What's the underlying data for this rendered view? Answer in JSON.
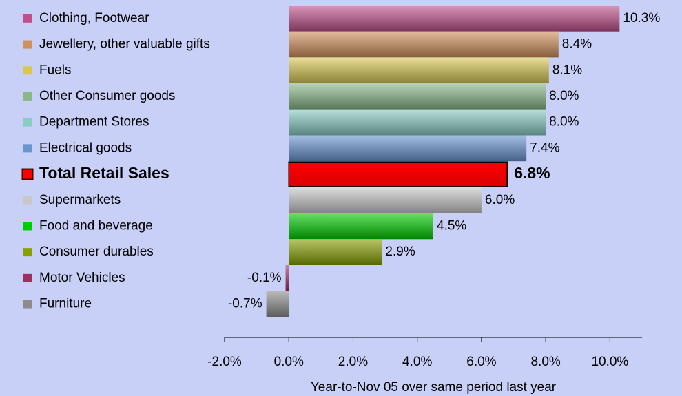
{
  "chart_data": {
    "type": "bar",
    "orientation": "horizontal",
    "x_label": "Year-to-Nov 05 over same period last year",
    "categories": [
      "Clothing, Footwear",
      "Jewellery, other valuable gifts",
      "Fuels",
      "Other Consumer goods",
      "Department Stores",
      "Electrical goods",
      "Total Retail Sales",
      "Supermarkets",
      "Food and beverage",
      "Consumer durables",
      "Motor Vehicles",
      "Furniture"
    ],
    "values": [
      10.3,
      8.4,
      8.1,
      8.0,
      8.0,
      7.4,
      6.8,
      6.0,
      4.5,
      2.9,
      -0.1,
      -0.7
    ],
    "value_labels": [
      "10.3%",
      "8.4%",
      "8.1%",
      "8.0%",
      "8.0%",
      "7.4%",
      "6.8%",
      "6.0%",
      "4.5%",
      "2.9%",
      "-0.1%",
      "-0.7%"
    ],
    "colors": [
      "#c0508a",
      "#d0905a",
      "#d8c850",
      "#88b888",
      "#88ccc4",
      "#6894d0",
      "#ff0000",
      "#c8c8c8",
      "#00cc00",
      "#88a000",
      "#a03060",
      "#8c8c8c"
    ],
    "highlight": 6,
    "xlim": [
      -2,
      11
    ],
    "xticks": [
      {
        "value": -2,
        "label": "-2.0%"
      },
      {
        "value": 0,
        "label": "0.0%"
      },
      {
        "value": 2,
        "label": "2.0%"
      },
      {
        "value": 4,
        "label": "4.0%"
      },
      {
        "value": 6,
        "label": "6.0%"
      },
      {
        "value": 8,
        "label": "8.0%"
      },
      {
        "value": 10,
        "label": "10.0%"
      }
    ]
  }
}
